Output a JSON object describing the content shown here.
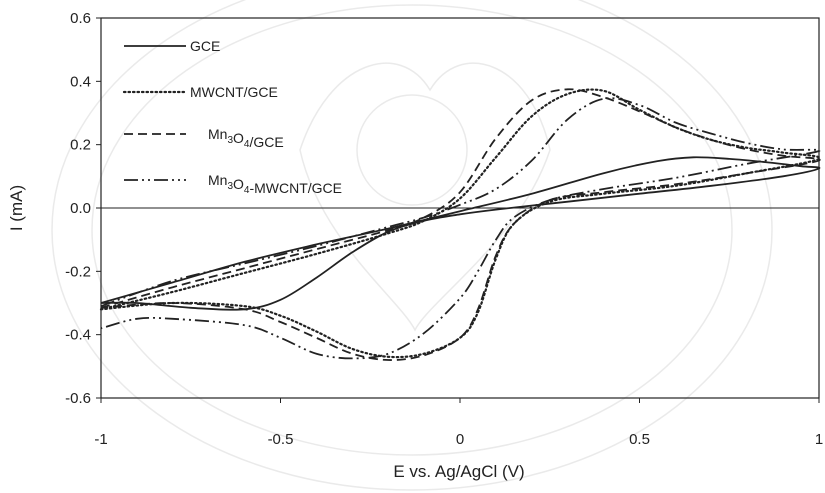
{
  "chart_data": {
    "type": "line",
    "title": "",
    "xlabel": "E vs. Ag/AgCl (V)",
    "ylabel": "I (mA)",
    "xlim": [
      -1,
      1
    ],
    "ylim": [
      -0.6,
      0.6
    ],
    "xticks": [
      -1,
      -0.5,
      0,
      0.5,
      1
    ],
    "xtick_labels": [
      "-1",
      "-0.5",
      "0",
      "0.5",
      "1"
    ],
    "yticks": [
      0.6,
      0.4,
      0.2,
      0.0,
      -0.2,
      -0.4,
      -0.6
    ],
    "ytick_labels": [
      "0.6",
      "0.4",
      "0.2",
      "0.0",
      "-0.2",
      "-0.4",
      "-0.6"
    ],
    "grid": false,
    "legend_position": "top-left",
    "series": [
      {
        "name": "GCE",
        "legend_parts": [
          {
            "t": "GCE"
          }
        ],
        "dash": "solid",
        "color": "#222222",
        "x": [
          -1.0,
          -0.8,
          -0.6,
          -0.4,
          -0.2,
          0.0,
          0.2,
          0.4,
          0.55,
          0.65,
          0.75,
          0.85,
          0.95,
          1.0,
          0.9,
          0.7,
          0.5,
          0.3,
          0.1,
          0.0,
          -0.1,
          -0.2,
          -0.3,
          -0.4,
          -0.5,
          -0.6,
          -0.75,
          -0.9,
          -1.0
        ],
        "y": [
          -0.3,
          -0.235,
          -0.17,
          -0.115,
          -0.065,
          -0.01,
          0.045,
          0.11,
          0.148,
          0.16,
          0.155,
          0.145,
          0.132,
          0.125,
          0.1,
          0.07,
          0.045,
          0.02,
          -0.005,
          -0.02,
          -0.04,
          -0.075,
          -0.14,
          -0.22,
          -0.29,
          -0.32,
          -0.315,
          -0.3,
          -0.3
        ]
      },
      {
        "name": "MWCNT/GCE",
        "legend_parts": [
          {
            "t": "MWCNT/GCE"
          }
        ],
        "dash": "dotted",
        "color": "#222222",
        "x": [
          -1.0,
          -0.8,
          -0.6,
          -0.4,
          -0.2,
          -0.1,
          0.0,
          0.1,
          0.2,
          0.3,
          0.4,
          0.5,
          0.6,
          0.7,
          0.8,
          0.9,
          1.0,
          0.8,
          0.6,
          0.4,
          0.25,
          0.15,
          0.1,
          0.05,
          0.0,
          -0.1,
          -0.2,
          -0.3,
          -0.4,
          -0.5,
          -0.6,
          -0.8,
          -1.0
        ],
        "y": [
          -0.32,
          -0.265,
          -0.205,
          -0.145,
          -0.08,
          -0.04,
          0.03,
          0.16,
          0.29,
          0.36,
          0.37,
          0.31,
          0.255,
          0.215,
          0.19,
          0.175,
          0.155,
          0.11,
          0.07,
          0.045,
          0.02,
          -0.05,
          -0.16,
          -0.33,
          -0.41,
          -0.46,
          -0.47,
          -0.445,
          -0.39,
          -0.34,
          -0.31,
          -0.3,
          -0.32
        ]
      },
      {
        "name": "Mn3O4/GCE",
        "legend_parts": [
          {
            "t": "Mn"
          },
          {
            "t": "3",
            "sub": true
          },
          {
            "t": "O"
          },
          {
            "t": "4",
            "sub": true
          },
          {
            "t": "/GCE"
          }
        ],
        "dash": "dashed",
        "color": "#222222",
        "x": [
          -1.0,
          -0.8,
          -0.6,
          -0.4,
          -0.2,
          -0.1,
          0.0,
          0.1,
          0.2,
          0.3,
          0.4,
          0.5,
          0.6,
          0.7,
          0.8,
          0.9,
          1.0,
          0.8,
          0.6,
          0.4,
          0.25,
          0.15,
          0.1,
          0.05,
          0.0,
          -0.1,
          -0.2,
          -0.3,
          -0.4,
          -0.5,
          -0.6,
          -0.8,
          -1.0
        ],
        "y": [
          -0.315,
          -0.25,
          -0.19,
          -0.13,
          -0.07,
          -0.03,
          0.05,
          0.22,
          0.34,
          0.375,
          0.35,
          0.305,
          0.255,
          0.215,
          0.185,
          0.165,
          0.15,
          0.11,
          0.075,
          0.05,
          0.025,
          -0.05,
          -0.15,
          -0.32,
          -0.41,
          -0.465,
          -0.48,
          -0.46,
          -0.41,
          -0.36,
          -0.32,
          -0.3,
          -0.315
        ]
      },
      {
        "name": "Mn3O4-MWCNT/GCE",
        "legend_parts": [
          {
            "t": "Mn"
          },
          {
            "t": "3",
            "sub": true
          },
          {
            "t": "O"
          },
          {
            "t": "4",
            "sub": true
          },
          {
            "t": "-MWCNT/GCE"
          }
        ],
        "dash": "dashdotdot",
        "color": "#222222",
        "x": [
          -1.0,
          -0.8,
          -0.6,
          -0.4,
          -0.2,
          -0.1,
          0.0,
          0.1,
          0.2,
          0.3,
          0.4,
          0.5,
          0.6,
          0.7,
          0.8,
          0.9,
          1.0,
          0.8,
          0.6,
          0.4,
          0.25,
          0.15,
          0.1,
          0.05,
          0.0,
          -0.1,
          -0.2,
          -0.3,
          -0.4,
          -0.5,
          -0.6,
          -0.8,
          -0.9,
          -1.0
        ],
        "y": [
          -0.31,
          -0.23,
          -0.175,
          -0.12,
          -0.06,
          -0.03,
          0.01,
          0.06,
          0.15,
          0.28,
          0.345,
          0.325,
          0.27,
          0.235,
          0.205,
          0.185,
          0.18,
          0.14,
          0.095,
          0.06,
          0.025,
          -0.03,
          -0.1,
          -0.2,
          -0.285,
          -0.395,
          -0.46,
          -0.475,
          -0.46,
          -0.41,
          -0.37,
          -0.35,
          -0.35,
          -0.38
        ]
      }
    ]
  }
}
